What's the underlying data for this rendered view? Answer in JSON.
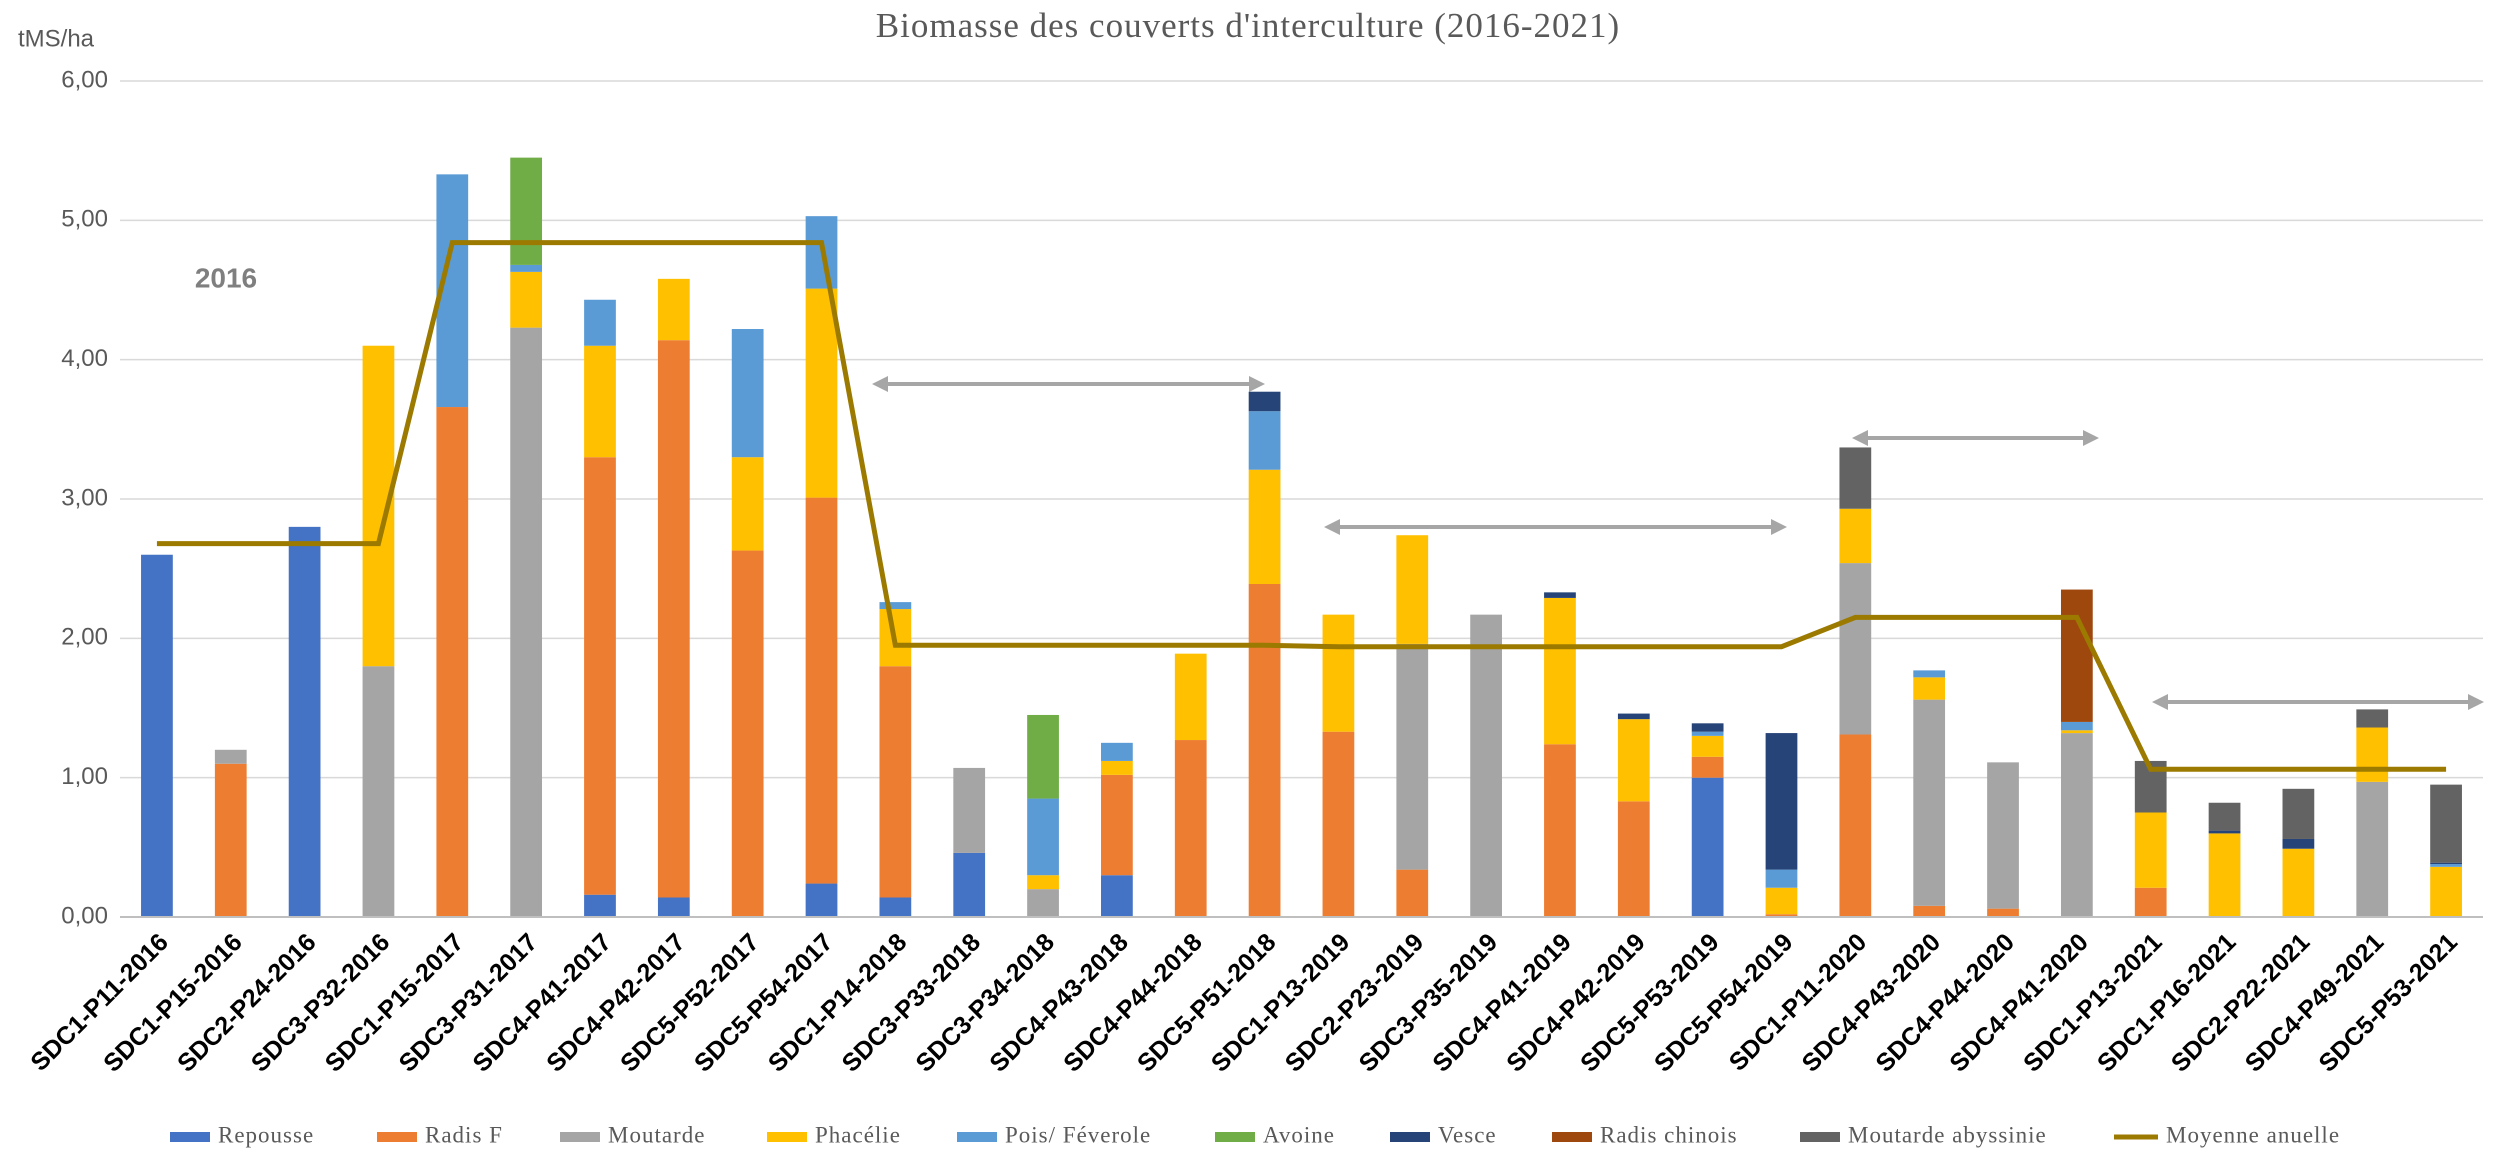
{
  "chart_data": {
    "type": "bar",
    "stacked": true,
    "title": "Biomasse des couverts d'interculture (2016-2021)",
    "y_label": "tMS/ha",
    "annotations": [
      "2016"
    ],
    "categories": [
      "SDC1-P11-2016",
      "SDC1-P15-2016",
      "SDC2-P24-2016",
      "SDC3-P32-2016",
      "SDC1-P15-2017",
      "SDC3-P31-2017",
      "SDC4-P41-2017",
      "SDC4-P42-2017",
      "SDC5-P52-2017",
      "SDC5-P54-2017",
      "SDC1-P14-2018",
      "SDC3-P33-2018",
      "SDC3-P34-2018",
      "SDC4-P43-2018",
      "SDC4-P44-2018",
      "SDC5-P51-2018",
      "SDC1-P13-2019",
      "SDC2-P23-2019",
      "SDC3-P35-2019",
      "SDC4-P41-2019",
      "SDC4-P42-2019",
      "SDC5-P53-2019",
      "SDC5-P54-2019",
      "SDC1-P11-2020",
      "SDC4-P43-2020",
      "SDC4-P44-2020",
      "SDC4-P41-2020",
      "SDC1-P13-2021",
      "SDC1-P16-2021",
      "SDC2-P22-2021",
      "SDC4-P49-2021",
      "SDC5-P53-2021"
    ],
    "series": [
      {
        "name": "Repousse",
        "color": "#4472c4",
        "values": [
          2.6,
          0,
          2.8,
          0,
          0,
          0,
          0.16,
          0.14,
          0,
          0.24,
          0.14,
          0.46,
          0,
          0.3,
          0,
          0,
          0,
          0,
          0,
          0,
          0,
          1.0,
          0,
          0,
          0,
          0,
          0,
          0,
          0,
          0,
          0,
          0
        ]
      },
      {
        "name": "Radis F",
        "color": "#ed7d31",
        "values": [
          0,
          1.1,
          0,
          0,
          3.66,
          0,
          3.14,
          4.0,
          2.63,
          2.77,
          1.66,
          0,
          0,
          0.72,
          1.27,
          2.39,
          1.33,
          0.34,
          0,
          1.24,
          0.83,
          0.15,
          0.02,
          1.31,
          0.08,
          0.06,
          0,
          0.21,
          0,
          0,
          0,
          0
        ]
      },
      {
        "name": "Moutarde",
        "color": "#a5a5a5",
        "values": [
          0,
          0.1,
          0,
          1.8,
          0,
          4.23,
          0,
          0,
          0,
          0,
          0,
          0.61,
          0.2,
          0,
          0,
          0,
          0,
          1.62,
          2.17,
          0,
          0,
          0,
          0,
          1.23,
          1.48,
          1.05,
          1.32,
          0,
          0,
          0,
          0.97,
          0
        ]
      },
      {
        "name": "Phacélie",
        "color": "#ffc000",
        "values": [
          0,
          0,
          0,
          2.3,
          0,
          0.4,
          0.8,
          0.44,
          0.67,
          1.5,
          0.41,
          0,
          0.1,
          0.1,
          0.62,
          0.82,
          0.84,
          0.78,
          0,
          1.05,
          0.59,
          0.15,
          0.19,
          0.39,
          0.16,
          0,
          0.02,
          0.54,
          0.6,
          0.49,
          0.39,
          0.36
        ]
      },
      {
        "name": "Pois/ Féverole",
        "color": "#5b9bd5",
        "values": [
          0,
          0,
          0,
          0,
          1.67,
          0.05,
          0.33,
          0,
          0.92,
          0.52,
          0.05,
          0,
          0.55,
          0.13,
          0,
          0.42,
          0,
          0,
          0,
          0,
          0,
          0.03,
          0.13,
          0,
          0.05,
          0,
          0.06,
          0,
          0,
          0,
          0,
          0.02
        ]
      },
      {
        "name": "Avoine",
        "color": "#70ad47",
        "values": [
          0,
          0,
          0,
          0,
          0,
          0.77,
          0,
          0,
          0,
          0,
          0,
          0,
          0.6,
          0,
          0,
          0,
          0,
          0,
          0,
          0,
          0,
          0,
          0,
          0,
          0,
          0,
          0,
          0,
          0,
          0,
          0,
          0
        ]
      },
      {
        "name": "Vesce",
        "color": "#264478",
        "values": [
          0,
          0,
          0,
          0,
          0,
          0,
          0,
          0,
          0,
          0,
          0,
          0,
          0,
          0,
          0,
          0.14,
          0,
          0,
          0,
          0.04,
          0.04,
          0.06,
          0.98,
          0,
          0,
          0,
          0,
          0,
          0.02,
          0.07,
          0,
          0.01
        ]
      },
      {
        "name": "Radis chinois",
        "color": "#9e480e",
        "values": [
          0,
          0,
          0,
          0,
          0,
          0,
          0,
          0,
          0,
          0,
          0,
          0,
          0,
          0,
          0,
          0,
          0,
          0,
          0,
          0,
          0,
          0,
          0,
          0,
          0,
          0,
          0.95,
          0,
          0,
          0,
          0,
          0
        ]
      },
      {
        "name": "Moutarde abyssinie",
        "color": "#636363",
        "values": [
          0,
          0,
          0,
          0,
          0,
          0,
          0,
          0,
          0,
          0,
          0,
          0,
          0,
          0,
          0,
          0,
          0,
          0,
          0,
          0,
          0,
          0,
          0,
          0.44,
          0,
          0,
          0,
          0.37,
          0.2,
          0.36,
          0.13,
          0.56
        ]
      },
      {
        "name": "Moyenne anuelle",
        "color": "#9c7a00",
        "type": "line",
        "values": [
          2.68,
          2.68,
          2.68,
          2.68,
          4.84,
          4.84,
          4.84,
          4.84,
          4.84,
          4.84,
          1.95,
          1.95,
          1.95,
          1.95,
          1.95,
          1.95,
          1.94,
          1.94,
          1.94,
          1.94,
          1.94,
          1.94,
          1.94,
          2.15,
          2.15,
          2.15,
          2.15,
          1.06,
          1.06,
          1.06,
          1.06,
          1.06
        ]
      }
    ],
    "ylim": [
      0,
      6
    ],
    "yticks": [
      {
        "value": 0,
        "label": "0,00"
      },
      {
        "value": 1,
        "label": "1,00"
      },
      {
        "value": 2,
        "label": "2,00"
      },
      {
        "value": 3,
        "label": "3,00"
      },
      {
        "value": 4,
        "label": "4,00"
      },
      {
        "value": 5,
        "label": "5,00"
      },
      {
        "value": 6,
        "label": "6,00"
      }
    ],
    "grid": true,
    "legend": "bottom"
  }
}
